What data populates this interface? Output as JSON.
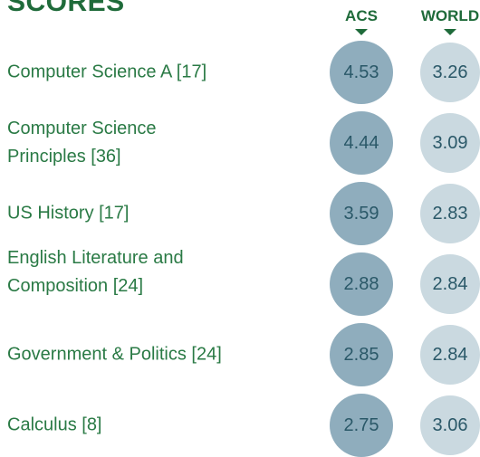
{
  "title": "SCORES",
  "columns": [
    "ACS",
    "WORLD"
  ],
  "rows": [
    [
      "Computer Science A [17]",
      "4.53",
      "3.26"
    ],
    [
      "Computer Science Principles [36]",
      "4.44",
      "3.09"
    ],
    [
      "US History [17]",
      "3.59",
      "2.83"
    ],
    [
      "English Literature and Composition [24]",
      "2.88",
      "2.84"
    ],
    [
      "Government & Politics [24]",
      "2.85",
      "2.84"
    ],
    [
      "Calculus [8]",
      "2.75",
      "3.06"
    ]
  ]
}
